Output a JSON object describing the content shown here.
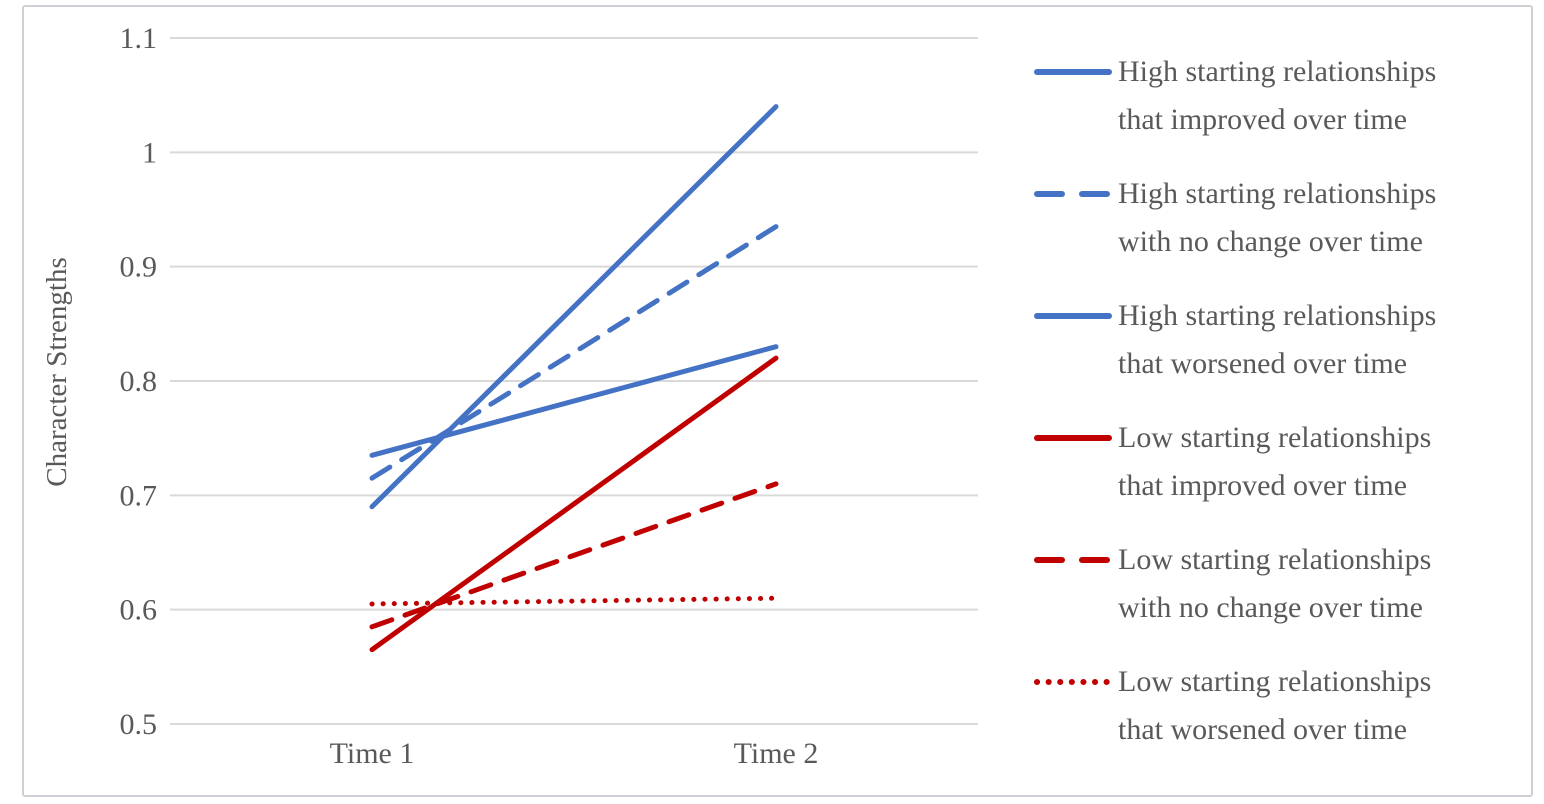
{
  "chart_data": {
    "type": "line",
    "title": "",
    "ylabel": "Character Strengths",
    "categories": [
      "Time 1",
      "Time 2"
    ],
    "ylim": [
      0.5,
      1.1
    ],
    "yticks": [
      1.1,
      1.0,
      0.9,
      0.8,
      0.7,
      0.6,
      0.5
    ],
    "ytick_labels": [
      "1.1",
      "1",
      "0.9",
      "0.8",
      "0.7",
      "0.6",
      "0.5"
    ],
    "grid": true,
    "legend_position": "right",
    "colors": {
      "high_series_blue": "#4472C4",
      "low_series_red": "#C00000",
      "gridline": "#D9D9D9",
      "text": "#595959"
    },
    "series": [
      {
        "name": "High starting relationships that improved over time",
        "legend_lines": [
          "High starting relationships",
          "that improved over time"
        ],
        "color": "#4472C4",
        "style": "solid",
        "values": [
          0.69,
          1.04
        ]
      },
      {
        "name": "High starting relationships with no change over time",
        "legend_lines": [
          "High starting relationships",
          "with no change over time"
        ],
        "color": "#4472C4",
        "style": "dashed",
        "values": [
          0.715,
          0.935
        ]
      },
      {
        "name": "High starting relationships that worsened over time",
        "legend_lines": [
          "High starting relationships",
          "that worsened over time"
        ],
        "color": "#4472C4",
        "style": "solid",
        "values": [
          0.735,
          0.83
        ]
      },
      {
        "name": "Low starting relationships that improved over time",
        "legend_lines": [
          "Low starting relationships",
          "that improved over time"
        ],
        "color": "#C00000",
        "style": "solid",
        "values": [
          0.565,
          0.82
        ]
      },
      {
        "name": "Low starting relationships with no change over time",
        "legend_lines": [
          "Low starting relationships",
          "with no change over time"
        ],
        "color": "#C00000",
        "style": "dashed",
        "values": [
          0.585,
          0.71
        ]
      },
      {
        "name": "Low starting relationships that worsened over time",
        "legend_lines": [
          "Low starting relationships",
          "that worsened over time"
        ],
        "color": "#C00000",
        "style": "dotted",
        "values": [
          0.605,
          0.61
        ]
      }
    ]
  }
}
